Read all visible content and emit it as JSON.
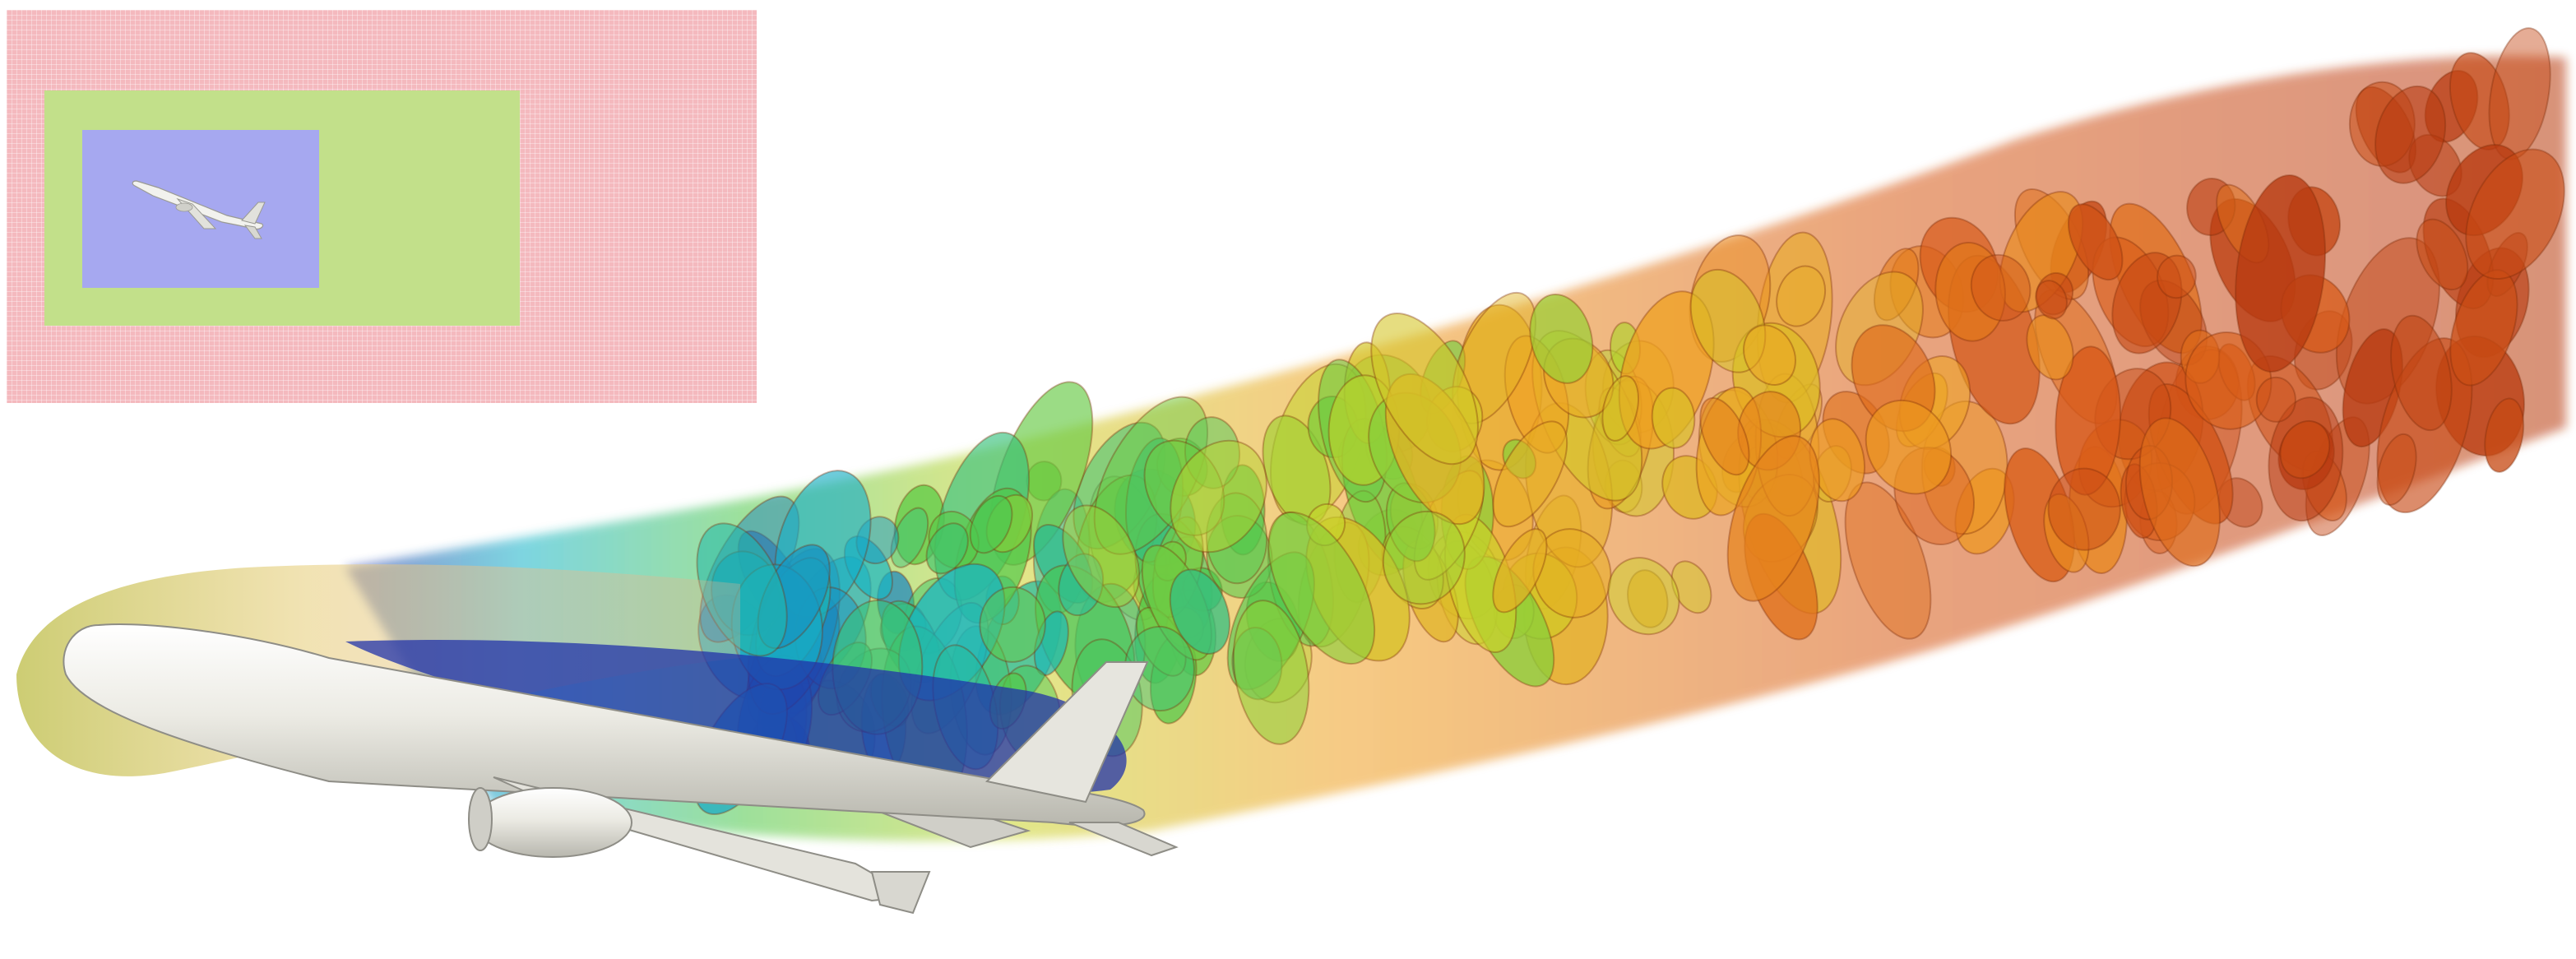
{
  "scene": {
    "subject": "aircraft",
    "colors": {
      "background": "#ffffff",
      "inset_outer": "#f4b9be",
      "inset_middle": "#c2e08a",
      "inset_inner": "#a6a8f0",
      "aircraft_body": "#e9e8e2",
      "wake_colormap": [
        "#2233aa",
        "#15b4c8",
        "#4fc84a",
        "#c9d42a",
        "#f0a020",
        "#d85a18",
        "#b83a10"
      ]
    }
  }
}
